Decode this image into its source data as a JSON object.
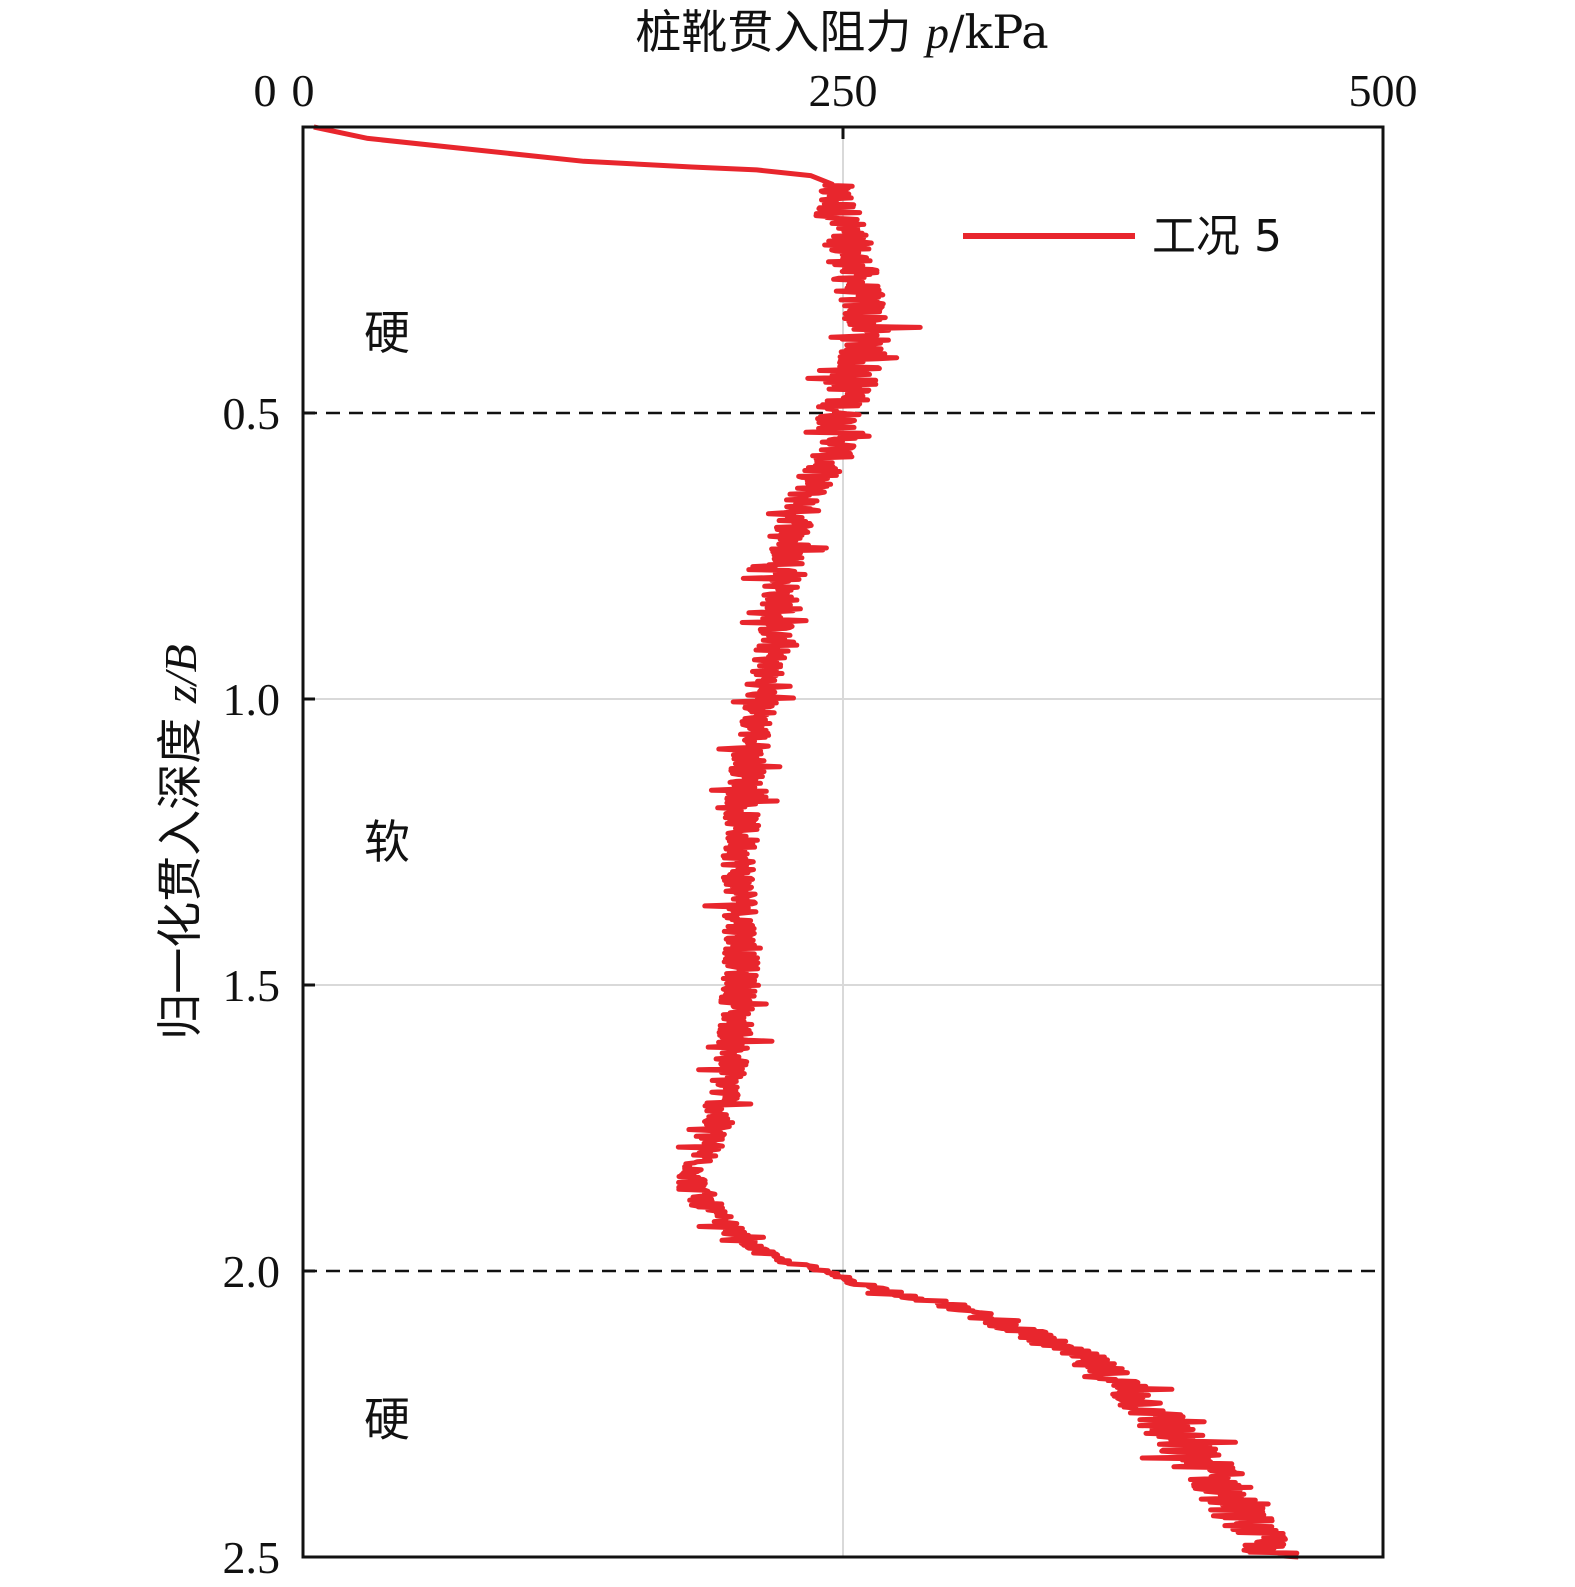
{
  "chart_data": {
    "type": "line",
    "xlabel": {
      "prefix": "桩靴贯入阻力 ",
      "var": "p",
      "suffix": "/kPa"
    },
    "ylabel": {
      "prefix": "归一化贯入深度 ",
      "var": "z/B",
      "suffix": ""
    },
    "x_axis_position": "top",
    "y_axis_inverted": true,
    "xlim": [
      0,
      500
    ],
    "ylim": [
      0,
      2.5
    ],
    "xticks": [
      0,
      250,
      500
    ],
    "yticks": [
      0.5,
      1.0,
      1.5,
      2.0,
      2.5
    ],
    "xtick_labels": [
      "0",
      "250",
      "500"
    ],
    "ytick_labels": [
      "0.5",
      "1.0",
      "1.5",
      "2.0",
      "2.5"
    ],
    "grid": true,
    "layer_boundaries": [
      0.5,
      2.0
    ],
    "zone_labels": [
      {
        "text": "硬",
        "z": 0.36
      },
      {
        "text": "软",
        "z": 1.25
      },
      {
        "text": "硬",
        "z": 2.26
      }
    ],
    "legend_position": "top-right",
    "series": [
      {
        "name": "工况 5",
        "color": "#e8262d",
        "x": [
          5,
          30,
          80,
          130,
          180,
          210,
          235,
          245,
          248,
          252,
          258,
          262,
          255,
          248,
          250,
          240,
          232,
          228,
          225,
          222,
          220,
          218,
          215,
          212,
          210,
          207,
          205,
          203,
          203,
          202,
          203,
          203,
          203,
          202,
          200,
          195,
          185,
          180,
          190,
          205,
          220,
          240,
          265,
          300,
          330,
          360,
          380,
          395,
          405,
          420,
          430,
          440,
          445,
          450
        ],
        "y": [
          0,
          0.02,
          0.04,
          0.06,
          0.07,
          0.075,
          0.085,
          0.1,
          0.15,
          0.2,
          0.3,
          0.35,
          0.45,
          0.5,
          0.55,
          0.6,
          0.65,
          0.7,
          0.75,
          0.8,
          0.85,
          0.9,
          0.95,
          1.0,
          1.05,
          1.1,
          1.15,
          1.2,
          1.25,
          1.3,
          1.35,
          1.4,
          1.45,
          1.5,
          1.6,
          1.7,
          1.8,
          1.85,
          1.9,
          1.95,
          1.98,
          2.0,
          2.03,
          2.06,
          2.1,
          2.15,
          2.2,
          2.25,
          2.3,
          2.35,
          2.4,
          2.45,
          2.48,
          2.5
        ],
        "noise_amplitude": [
          0,
          0,
          0,
          0,
          0,
          0,
          0,
          18,
          22,
          22,
          22,
          22,
          22,
          22,
          20,
          18,
          18,
          18,
          18,
          18,
          16,
          16,
          16,
          16,
          16,
          16,
          16,
          16,
          16,
          16,
          16,
          16,
          16,
          16,
          16,
          16,
          16,
          16,
          14,
          10,
          8,
          8,
          12,
          15,
          18,
          22,
          25,
          28,
          30,
          30,
          28,
          25,
          25,
          25
        ]
      }
    ]
  }
}
